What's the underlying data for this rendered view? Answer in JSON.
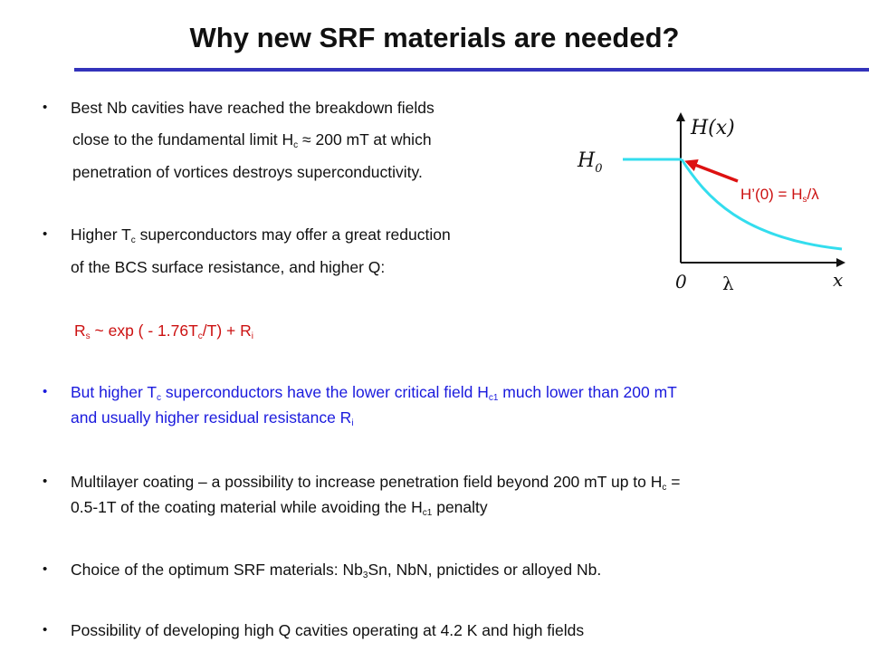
{
  "slide": {
    "title": "Why new SRF materials are needed?"
  },
  "bullets": {
    "b1": {
      "bullet": "•",
      "line1": "Best  Nb cavities have reached the breakdown fields",
      "line2_pre": "close to the fundamental limit H",
      "line2_sub": "c",
      "line2_post": " ≈ 200 mT at which",
      "line3": "penetration of vortices destroys superconductivity."
    },
    "b2": {
      "bullet": "•",
      "line1_pre": "Higher T",
      "line1_sub": "c",
      "line1_post": " superconductors may offer a great reduction",
      "line2": "of the BCS surface resistance, and higher Q:"
    },
    "formula": {
      "r": "R",
      "r_sub": "s",
      "mid": "  ~ exp ( - 1.76T",
      "t_sub": "c",
      "end": "/T) + R",
      "ri_sub": "i"
    },
    "b3": {
      "bullet": "•",
      "line1_a": "But higher T",
      "line1_sub1": "c",
      "line1_b": " superconductors have the lower critical field H",
      "line1_sub2": "c1",
      "line1_c": "  much lower than 200 mT",
      "line2_a": "and usually higher residual resistance R",
      "line2_sub": "i"
    },
    "b4": {
      "bullet": "•",
      "line1_a": "Multilayer coating – a possibility to increase penetration field beyond 200 mT up to H",
      "line1_sub": "c",
      "line1_b": " =",
      "line2_a": "0.5-1T of the coating material while avoiding the H",
      "line2_sub": "c1",
      "line2_b": " penalty"
    },
    "b5": {
      "bullet": "•",
      "text_a": "Choice of the optimum SRF materials: Nb",
      "text_sub": "3",
      "text_b": "Sn, NbN,  pnictides or alloyed Nb."
    },
    "b6": {
      "bullet": "•",
      "text": "Possibility of developing high Q cavities operating at 4.2 K and high fields"
    }
  },
  "figure": {
    "y_axis_label": "H(x)",
    "h0_label": "H",
    "h0_sub": "0",
    "zero_label": "0",
    "x_axis_label": "x",
    "lambda_label": "λ",
    "annotation_pre": "H’(0) = H",
    "annotation_sub": "s",
    "annotation_post": "/λ",
    "curve_color": "#33ddee",
    "arrow_color": "#dd1111"
  }
}
